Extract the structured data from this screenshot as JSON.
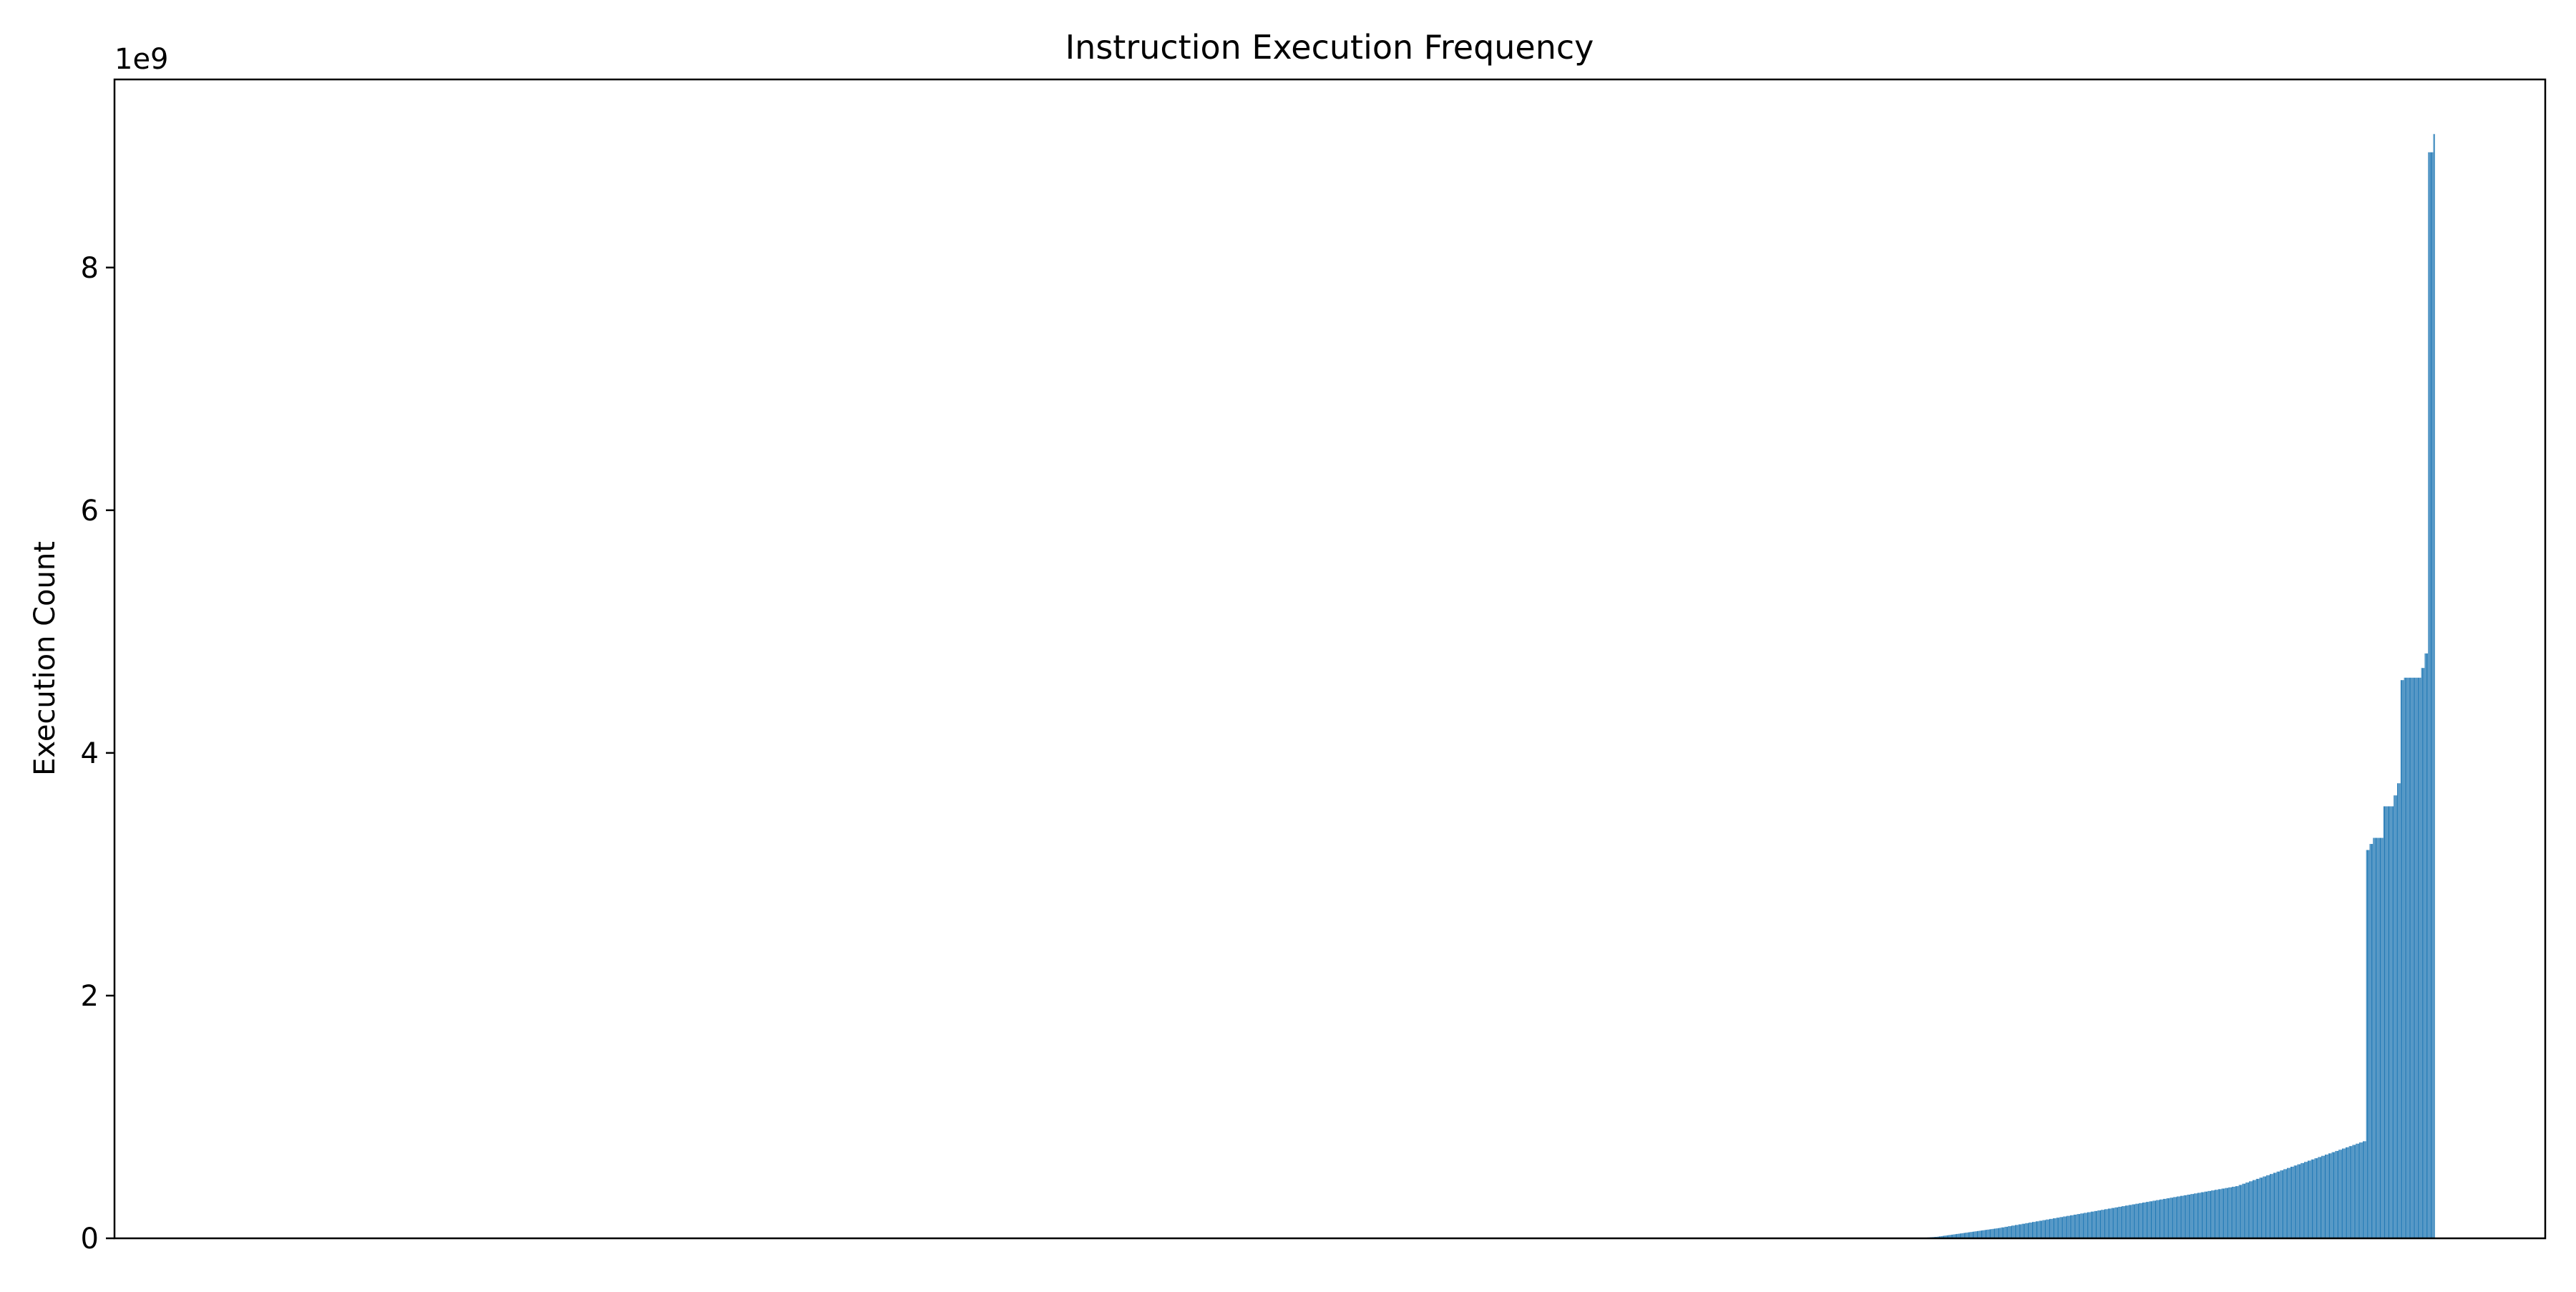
{
  "chart_data": {
    "type": "bar",
    "title": "Instruction Execution Frequency",
    "xlabel": "",
    "ylabel": "Execution Count",
    "y_offset_text": "1e9",
    "ylim": [
      0,
      9.55
    ],
    "y_ticks": [
      0,
      2,
      4,
      6,
      8
    ],
    "y_tick_labels": [
      "0",
      "2",
      "4",
      "6",
      "8"
    ],
    "x_ticks_visible": false,
    "grid": false,
    "bar_color": "#1f77b4",
    "values": [
      0,
      0,
      0,
      0,
      0,
      0,
      0,
      0,
      0,
      0,
      0,
      0,
      0,
      0,
      0,
      0,
      0,
      0,
      0,
      0,
      0,
      0,
      0,
      0,
      0,
      0,
      0,
      0,
      0,
      0,
      0,
      0,
      0,
      0,
      0,
      0,
      0,
      0,
      0,
      0,
      0,
      0,
      0,
      0,
      0,
      0,
      0,
      0,
      0,
      0,
      0,
      0,
      0,
      0,
      0,
      0,
      0,
      0,
      0,
      0,
      0,
      0,
      0,
      0,
      0,
      0,
      0,
      0,
      0,
      0,
      0,
      0,
      0,
      0,
      0,
      0,
      0,
      0,
      0,
      0,
      0,
      0,
      0,
      0,
      0,
      0,
      0,
      0,
      0,
      0,
      0,
      0,
      0,
      0,
      0,
      0,
      0,
      0,
      0,
      0,
      0,
      0,
      0,
      0,
      0,
      0,
      0,
      0,
      0,
      0,
      0,
      0,
      0,
      0,
      0,
      0,
      0,
      0,
      0,
      0,
      0,
      0,
      0,
      0,
      0,
      0,
      0,
      0,
      0,
      0,
      0,
      0,
      0,
      0,
      0,
      0,
      0,
      0,
      0,
      0,
      0,
      0,
      0,
      0,
      0,
      0,
      0,
      0,
      0,
      0,
      0,
      0,
      0,
      0,
      0,
      0,
      0,
      0,
      0,
      0,
      0,
      0,
      0,
      0,
      0,
      0,
      0,
      0,
      0,
      0,
      0,
      0,
      0,
      0,
      0,
      0,
      0,
      0,
      0,
      0,
      0,
      0,
      0,
      0,
      0,
      0,
      0,
      0,
      0,
      0,
      0,
      0,
      0,
      0,
      0,
      0,
      0,
      0,
      0,
      0,
      0,
      0,
      0,
      0,
      0,
      0,
      0,
      0,
      0,
      0,
      0,
      0,
      0,
      0,
      0,
      0,
      0,
      0,
      0,
      0,
      0,
      0,
      0,
      0,
      0,
      0,
      0,
      0,
      0,
      0,
      0,
      0,
      0,
      0,
      0,
      0,
      0,
      0,
      0,
      0,
      0,
      0,
      0,
      0,
      0,
      0,
      0,
      0,
      0,
      0,
      0,
      0,
      0,
      0,
      0,
      0,
      0,
      0,
      0,
      0,
      0,
      0,
      0,
      0,
      0,
      0,
      0,
      0,
      0,
      0,
      0,
      0,
      0,
      0,
      0,
      0,
      0,
      0,
      0,
      0,
      0,
      0,
      0,
      0,
      0,
      0,
      0,
      0,
      0,
      0,
      0,
      0,
      0,
      0,
      0,
      0,
      0,
      0,
      0,
      0,
      0,
      0,
      0,
      0,
      0,
      0,
      0,
      0,
      0,
      0,
      0,
      0,
      0,
      0,
      0,
      0,
      0,
      0,
      0,
      0,
      0,
      0,
      0,
      0,
      0,
      0,
      0,
      0,
      0,
      0,
      0,
      0,
      0,
      0,
      0,
      0,
      0,
      0,
      0,
      0,
      0,
      0,
      0,
      0,
      0,
      0,
      0,
      0,
      0,
      0,
      0,
      0,
      0,
      0,
      0,
      0,
      0,
      0,
      0,
      0,
      0,
      0,
      0,
      0,
      0,
      0,
      0,
      0,
      0,
      0,
      0,
      0,
      0,
      0,
      0,
      0,
      0,
      0,
      0,
      0,
      0,
      0,
      0,
      0,
      0,
      0,
      0,
      0,
      0,
      0,
      0,
      0,
      0,
      0,
      0,
      0,
      0,
      0,
      0,
      0,
      0,
      0,
      0,
      0,
      0,
      0,
      0,
      0,
      0,
      0,
      0,
      0,
      0,
      0,
      0,
      0,
      0,
      0,
      0,
      0,
      0,
      0,
      0,
      0,
      0,
      0,
      0,
      0,
      0,
      0,
      0,
      0,
      0,
      0,
      0,
      0,
      0,
      0,
      0,
      0,
      0,
      0,
      0,
      0,
      0,
      0,
      0,
      0,
      0,
      0,
      0,
      0,
      0,
      0,
      0,
      0,
      0,
      0,
      0,
      0,
      0,
      0,
      0,
      0,
      0,
      0,
      0,
      0,
      0,
      0,
      0,
      0,
      0,
      0,
      0,
      0,
      0,
      0,
      0,
      0,
      0,
      0,
      0,
      0,
      0,
      0,
      0,
      0,
      0,
      0,
      0,
      0,
      0,
      0,
      0,
      0,
      0,
      0,
      0,
      0,
      0,
      0,
      0,
      0,
      0,
      0,
      0,
      0,
      0,
      0,
      0,
      0,
      0,
      0,
      0,
      0,
      0,
      0,
      0,
      0,
      0,
      0,
      0,
      0,
      0,
      0,
      0,
      0,
      0,
      0,
      0,
      0,
      0,
      0,
      0,
      0,
      0,
      0,
      0,
      0,
      0,
      0,
      0,
      0,
      0,
      0,
      0,
      0,
      0,
      0,
      0,
      0,
      0,
      0,
      0,
      0,
      0,
      0,
      0,
      0,
      0,
      0,
      0,
      0,
      0,
      0,
      0,
      0,
      0,
      0,
      0,
      0,
      0,
      0,
      0,
      0,
      0,
      0,
      0,
      0,
      0,
      0,
      0,
      0,
      0,
      0,
      0,
      0,
      0,
      0,
      0,
      0,
      0,
      0,
      0,
      0,
      0,
      0,
      0,
      0,
      0,
      0,
      0,
      0,
      0,
      0,
      0,
      0,
      0,
      0,
      0,
      0,
      0,
      0,
      0,
      0,
      0,
      0,
      0,
      0,
      0,
      0,
      0,
      0,
      0,
      0,
      0,
      0,
      0,
      0,
      0,
      0,
      0,
      0,
      0,
      0,
      0,
      0,
      0,
      0,
      0,
      0,
      0,
      0,
      0,
      0,
      0,
      0,
      0,
      0,
      0,
      0,
      0,
      0,
      0,
      0,
      0,
      0,
      0,
      0,
      0,
      0,
      0,
      0,
      0,
      0,
      0,
      0,
      0,
      0,
      0,
      0,
      0,
      0,
      0,
      0,
      0,
      0,
      0,
      0,
      0,
      0,
      0,
      0,
      0,
      0,
      0,
      0,
      0,
      0,
      0,
      0,
      0,
      0,
      0,
      0,
      0,
      0,
      0,
      0,
      0,
      0,
      0,
      0,
      0,
      0,
      0,
      0,
      0,
      0,
      0,
      0,
      0,
      0,
      0,
      0,
      0,
      0,
      0,
      0,
      0,
      0,
      0,
      0,
      0,
      0,
      0,
      0,
      0,
      0,
      0,
      0,
      0,
      0,
      0,
      0,
      0,
      0,
      0,
      0,
      0,
      0,
      0,
      0,
      0,
      0,
      0,
      0,
      0,
      0,
      0,
      0,
      0,
      0,
      0,
      0,
      0,
      0,
      0,
      0,
      0,
      0,
      0,
      0,
      0,
      0,
      0,
      0,
      0,
      0,
      0,
      0,
      0,
      0,
      0,
      0,
      0,
      0,
      0,
      0,
      0,
      0,
      0,
      0,
      0,
      0,
      0,
      0,
      0,
      0,
      0,
      0,
      0,
      0,
      0,
      0,
      0,
      0,
      0,
      0,
      0,
      0,
      0,
      0,
      0,
      0,
      0,
      0,
      0,
      0,
      0,
      0,
      0,
      0,
      0,
      0,
      0,
      0,
      0,
      0,
      0,
      0,
      0,
      0,
      0,
      0,
      0,
      0,
      0,
      0,
      0,
      0,
      0,
      0,
      0,
      0,
      0,
      0,
      0,
      0,
      0,
      0,
      0,
      0,
      0,
      0,
      0,
      0,
      0,
      0,
      0,
      0,
      0,
      0,
      0,
      0,
      0,
      0,
      0,
      0,
      0,
      0,
      0,
      0,
      0,
      0,
      0,
      0,
      0,
      0,
      0,
      0,
      0,
      0,
      0,
      0,
      0,
      0,
      0,
      0,
      0,
      0,
      0,
      0,
      0,
      0,
      0,
      0,
      0,
      0,
      0,
      0,
      0,
      0,
      0,
      0,
      0,
      0,
      0,
      0,
      0,
      0,
      0,
      0,
      0,
      0,
      0,
      0,
      0,
      0,
      0,
      0,
      0,
      0,
      0,
      0,
      0,
      0,
      0,
      0,
      0,
      0,
      0,
      0,
      0,
      0,
      0,
      0,
      0,
      0,
      0,
      0,
      0,
      0,
      0,
      0,
      0,
      0,
      0,
      0,
      0,
      0,
      0,
      0,
      0,
      0,
      0,
      0,
      0,
      0,
      0,
      0,
      0,
      0,
      0,
      0,
      0,
      0,
      0,
      0,
      0,
      0,
      0,
      0,
      0,
      0,
      0,
      0,
      0,
      0,
      0,
      0,
      0,
      0,
      0,
      0,
      0,
      0,
      0,
      0,
      0,
      0,
      0,
      0,
      0,
      0,
      0,
      0,
      0,
      0,
      0,
      0,
      0,
      0,
      0,
      0,
      0,
      0,
      0,
      0,
      0,
      0,
      0,
      0,
      0,
      0,
      0,
      0,
      0,
      0,
      0,
      0,
      0,
      0,
      0,
      0,
      0,
      0,
      0,
      0,
      0,
      0,
      0,
      0,
      0,
      0,
      0,
      0,
      0,
      0,
      0,
      0,
      0,
      0,
      0,
      0,
      0,
      0,
      0,
      0,
      0,
      0,
      0,
      0,
      0,
      0,
      0,
      0,
      0,
      0,
      0,
      0,
      0,
      0,
      0,
      0,
      0,
      0,
      0,
      0,
      0,
      0,
      0,
      0,
      0,
      0,
      0,
      0,
      0,
      0,
      0,
      0,
      0,
      0,
      0,
      0,
      0,
      0,
      0,
      0,
      0,
      0,
      0,
      0,
      0,
      0,
      0,
      0,
      0,
      0,
      0,
      0,
      0,
      0,
      0,
      0,
      0,
      0,
      0,
      0,
      0,
      0,
      0,
      0,
      0,
      0,
      0,
      0,
      0,
      0,
      0,
      0,
      0,
      0,
      0,
      0,
      0,
      0,
      0,
      0,
      0,
      0,
      0,
      0,
      0,
      0,
      0,
      0,
      0,
      0,
      0,
      0,
      0,
      0,
      0,
      0,
      0,
      0,
      0,
      0,
      0,
      0,
      0,
      0,
      0,
      0,
      0,
      0,
      0,
      0,
      0,
      0,
      0,
      0,
      0,
      0,
      0,
      0,
      0,
      0,
      0,
      0,
      0,
      0,
      0,
      0,
      0,
      0,
      0,
      0,
      0,
      0,
      0,
      0,
      0,
      0,
      0,
      0,
      0,
      0,
      0,
      0,
      0,
      0,
      0,
      0,
      0,
      0,
      0,
      0,
      0,
      0,
      0,
      0,
      0,
      0,
      0,
      0,
      0,
      0,
      0.004,
      0.004,
      0.004,
      0.004,
      0.005,
      0.005,
      0.005,
      0.005,
      0.006,
      0.006,
      0.007,
      0.007,
      0.008,
      0.008,
      0.009,
      0.009,
      0.01,
      0.01,
      0.011,
      0.011,
      0.012,
      0.012,
      0.014,
      0.014,
      0.016,
      0.016,
      0.018,
      0.018,
      0.02,
      0.02,
      0.022,
      0.022,
      0.024,
      0.024,
      0.026,
      0.026,
      0.028,
      0.028,
      0.03,
      0.03,
      0.032,
      0.032,
      0.034,
      0.034,
      0.036,
      0.036,
      0.038,
      0.038,
      0.04,
      0.04,
      0.042,
      0.042,
      0.044,
      0.044,
      0.046,
      0.046,
      0.048,
      0.048,
      0.05,
      0.05,
      0.052,
      0.052,
      0.054,
      0.054,
      0.056,
      0.056,
      0.058,
      0.058,
      0.06,
      0.06,
      0.062,
      0.062,
      0.064,
      0.064,
      0.066,
      0.066,
      0.068,
      0.068,
      0.07,
      0.07,
      0.072,
      0.072,
      0.074,
      0.074,
      0.076,
      0.076,
      0.078,
      0.078,
      0.08,
      0.08,
      0.082,
      0.082,
      0.084,
      0.084,
      0.086,
      0.086,
      0.09,
      0.09,
      0.09,
      0.09,
      0.095,
      0.095,
      0.095,
      0.095,
      0.1,
      0.1,
      0.1,
      0.1,
      0.105,
      0.105,
      0.105,
      0.105,
      0.11,
      0.11,
      0.11,
      0.11,
      0.115,
      0.115,
      0.115,
      0.115,
      0.12,
      0.12,
      0.12,
      0.12,
      0.125,
      0.125,
      0.125,
      0.125,
      0.13,
      0.13,
      0.13,
      0.13,
      0.135,
      0.135,
      0.135,
      0.135,
      0.14,
      0.14,
      0.14,
      0.14,
      0.145,
      0.145,
      0.145,
      0.145,
      0.15,
      0.15,
      0.15,
      0.15,
      0.155,
      0.155,
      0.155,
      0.155,
      0.16,
      0.16,
      0.16,
      0.16,
      0.165,
      0.165,
      0.165,
      0.165,
      0.17,
      0.17,
      0.17,
      0.17,
      0.175,
      0.175,
      0.175,
      0.175,
      0.18,
      0.18,
      0.18,
      0.18,
      0.185,
      0.185,
      0.185,
      0.185,
      0.19,
      0.19,
      0.19,
      0.19,
      0.195,
      0.195,
      0.195,
      0.195,
      0.2,
      0.2,
      0.2,
      0.2,
      0.205,
      0.205,
      0.205,
      0.205,
      0.21,
      0.21,
      0.21,
      0.21,
      0.215,
      0.215,
      0.215,
      0.215,
      0.22,
      0.22,
      0.22,
      0.22,
      0.225,
      0.225,
      0.225,
      0.225,
      0.23,
      0.23,
      0.23,
      0.23,
      0.235,
      0.235,
      0.235,
      0.235,
      0.24,
      0.24,
      0.24,
      0.24,
      0.245,
      0.245,
      0.245,
      0.245,
      0.25,
      0.25,
      0.25,
      0.25,
      0.255,
      0.255,
      0.255,
      0.255,
      0.26,
      0.26,
      0.26,
      0.26,
      0.265,
      0.265,
      0.265,
      0.265,
      0.27,
      0.27,
      0.27,
      0.27,
      0.275,
      0.275,
      0.275,
      0.275,
      0.28,
      0.28,
      0.28,
      0.28,
      0.285,
      0.285,
      0.285,
      0.285,
      0.29,
      0.29,
      0.29,
      0.29,
      0.295,
      0.295,
      0.295,
      0.295,
      0.3,
      0.3,
      0.3,
      0.3,
      0.305,
      0.305,
      0.305,
      0.305,
      0.31,
      0.31,
      0.31,
      0.31,
      0.315,
      0.315,
      0.315,
      0.315,
      0.32,
      0.32,
      0.32,
      0.32,
      0.325,
      0.325,
      0.325,
      0.325,
      0.33,
      0.33,
      0.33,
      0.33,
      0.335,
      0.335,
      0.335,
      0.335,
      0.34,
      0.34,
      0.34,
      0.34,
      0.345,
      0.345,
      0.345,
      0.345,
      0.35,
      0.35,
      0.35,
      0.35,
      0.355,
      0.355,
      0.355,
      0.355,
      0.36,
      0.36,
      0.36,
      0.36,
      0.365,
      0.365,
      0.365,
      0.365,
      0.37,
      0.37,
      0.37,
      0.37,
      0.375,
      0.375,
      0.375,
      0.375,
      0.38,
      0.38,
      0.38,
      0.38,
      0.385,
      0.385,
      0.385,
      0.385,
      0.39,
      0.39,
      0.39,
      0.39,
      0.395,
      0.395,
      0.395,
      0.395,
      0.4,
      0.4,
      0.4,
      0.4,
      0.405,
      0.405,
      0.405,
      0.405,
      0.41,
      0.41,
      0.41,
      0.41,
      0.415,
      0.415,
      0.415,
      0.415,
      0.42,
      0.42,
      0.42,
      0.42,
      0.425,
      0.425,
      0.425,
      0.425,
      0.43,
      0.43,
      0.43,
      0.43,
      0.44,
      0.44,
      0.44,
      0.44,
      0.45,
      0.45,
      0.45,
      0.45,
      0.46,
      0.46,
      0.46,
      0.46,
      0.47,
      0.47,
      0.47,
      0.47,
      0.48,
      0.48,
      0.48,
      0.48,
      0.49,
      0.49,
      0.49,
      0.49,
      0.5,
      0.5,
      0.5,
      0.5,
      0.51,
      0.51,
      0.51,
      0.51,
      0.52,
      0.52,
      0.52,
      0.52,
      0.53,
      0.53,
      0.53,
      0.53,
      0.54,
      0.54,
      0.54,
      0.54,
      0.55,
      0.55,
      0.55,
      0.55,
      0.56,
      0.56,
      0.56,
      0.56,
      0.57,
      0.57,
      0.57,
      0.57,
      0.58,
      0.58,
      0.58,
      0.58,
      0.59,
      0.59,
      0.59,
      0.59,
      0.6,
      0.6,
      0.6,
      0.6,
      0.61,
      0.61,
      0.61,
      0.61,
      0.62,
      0.62,
      0.62,
      0.62,
      0.63,
      0.63,
      0.63,
      0.63,
      0.64,
      0.64,
      0.64,
      0.64,
      0.65,
      0.65,
      0.65,
      0.65,
      0.66,
      0.66,
      0.66,
      0.66,
      0.67,
      0.67,
      0.67,
      0.67,
      0.68,
      0.68,
      0.68,
      0.68,
      0.69,
      0.69,
      0.69,
      0.69,
      0.7,
      0.7,
      0.7,
      0.7,
      0.71,
      0.71,
      0.71,
      0.71,
      0.72,
      0.72,
      0.72,
      0.72,
      0.73,
      0.73,
      0.73,
      0.73,
      0.74,
      0.74,
      0.74,
      0.74,
      0.75,
      0.75,
      0.75,
      0.75,
      0.76,
      0.76,
      0.76,
      0.76,
      0.77,
      0.77,
      0.77,
      0.77,
      0.78,
      0.78,
      0.78,
      0.78,
      0.79,
      0.79,
      0.79,
      0.79,
      0.8,
      0.8,
      0.8,
      0.8,
      3.2,
      3.2,
      3.2,
      3.2,
      3.25,
      3.25,
      3.25,
      3.25,
      3.3,
      3.3,
      3.3,
      3.3,
      3.3,
      3.3,
      3.3,
      3.3,
      3.3,
      3.3,
      3.3,
      3.3,
      3.56,
      3.56,
      3.56,
      3.56,
      3.56,
      3.56,
      3.56,
      3.56,
      3.56,
      3.56,
      3.56,
      3.56,
      3.65,
      3.65,
      3.65,
      3.65,
      3.75,
      3.75,
      3.75,
      3.75,
      4.6,
      4.6,
      4.6,
      4.6,
      4.62,
      4.62,
      4.62,
      4.62,
      4.62,
      4.62,
      4.62,
      4.62,
      4.62,
      4.62,
      4.62,
      4.62,
      4.62,
      4.62,
      4.62,
      4.62,
      4.62,
      4.62,
      4.62,
      4.62,
      4.7,
      4.7,
      4.7,
      4.7,
      4.82,
      4.82,
      4.82,
      4.82,
      8.95,
      8.95,
      8.95,
      8.95,
      8.95,
      8.95,
      9.1,
      9.1
    ]
  }
}
